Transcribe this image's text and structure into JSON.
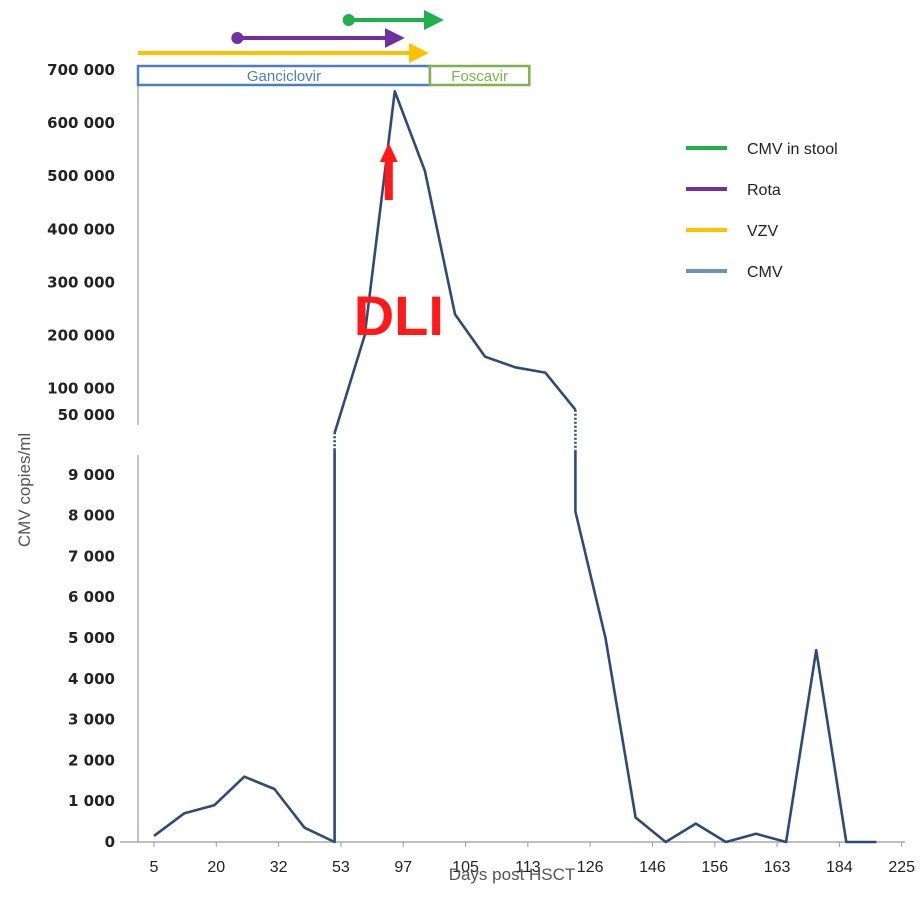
{
  "chart_data": {
    "type": "line",
    "xlabel": "Days post HSCT",
    "ylabel": "CMV copies/ml",
    "x_tick_labels": [
      "5",
      "20",
      "32",
      "53",
      "97",
      "105",
      "113",
      "126",
      "146",
      "156",
      "163",
      "184",
      "225"
    ],
    "y_axis_scale": "broken",
    "y_lower_ticks": [
      {
        "label": "0",
        "value": 0
      },
      {
        "label": "1 000",
        "value": 1000
      },
      {
        "label": "2 000",
        "value": 2000
      },
      {
        "label": "3 000",
        "value": 3000
      },
      {
        "label": "4 000",
        "value": 4000
      },
      {
        "label": "5 000",
        "value": 5000
      },
      {
        "label": "6 000",
        "value": 6000
      },
      {
        "label": "7 000",
        "value": 7000
      },
      {
        "label": "8 000",
        "value": 8000
      },
      {
        "label": "9 000",
        "value": 9000
      }
    ],
    "y_upper_ticks": [
      {
        "label": "50 000",
        "value": 50000
      },
      {
        "label": "100 000",
        "value": 100000
      },
      {
        "label": "200 000",
        "value": 200000
      },
      {
        "label": "300 000",
        "value": 300000
      },
      {
        "label": "400 000",
        "value": 400000
      },
      {
        "label": "500 000",
        "value": 500000
      },
      {
        "label": "600 000",
        "value": 600000
      },
      {
        "label": "700 000",
        "value": 700000
      }
    ],
    "series": [
      {
        "name": "CMV",
        "color": "#2e4a7a",
        "points": [
          {
            "slot": 0,
            "y": 150
          },
          {
            "slot": 1,
            "y": 700
          },
          {
            "slot": 2,
            "y": 900
          },
          {
            "slot": 3,
            "y": 1600
          },
          {
            "slot": 4,
            "y": 1300
          },
          {
            "slot": 5,
            "y": 350
          },
          {
            "slot": 6,
            "y": 0
          },
          {
            "slot": 6,
            "y": 9600
          },
          {
            "slot": 6,
            "y": 10500,
            "dashed_from_prev": true
          },
          {
            "slot": 7,
            "y": 200000
          },
          {
            "slot": 8,
            "y": 660000
          },
          {
            "slot": 9,
            "y": 510000
          },
          {
            "slot": 10,
            "y": 240000
          },
          {
            "slot": 11,
            "y": 160000
          },
          {
            "slot": 12,
            "y": 140000
          },
          {
            "slot": 13,
            "y": 130000
          },
          {
            "slot": 14,
            "y": 60000
          },
          {
            "slot": 14,
            "y": 9600,
            "dashed_from_prev": true
          },
          {
            "slot": 14,
            "y": 8100
          },
          {
            "slot": 15,
            "y": 5000
          },
          {
            "slot": 16,
            "y": 600
          },
          {
            "slot": 17,
            "y": 0
          },
          {
            "slot": 18,
            "y": 450
          },
          {
            "slot": 19,
            "y": 0
          },
          {
            "slot": 20,
            "y": 200
          },
          {
            "slot": 21,
            "y": 0
          },
          {
            "slot": 22,
            "y": 4700
          },
          {
            "slot": 23,
            "y": 0
          },
          {
            "slot": 24,
            "y": 0
          }
        ]
      }
    ],
    "legend": {
      "placement": "top-right",
      "items": [
        {
          "label": "CMV in stool",
          "color": "#1db04b"
        },
        {
          "label": "Rota",
          "color": "#7030a0"
        },
        {
          "label": "VZV",
          "color": "#ffc000"
        },
        {
          "label": "CMV",
          "color": "#6f8fbf"
        }
      ]
    },
    "infection_periods": [
      {
        "name": "CMV in stool",
        "color": "#1db04b",
        "start_slot": 7,
        "end_slot": 9.5,
        "start_marker": "dot"
      },
      {
        "name": "Rota",
        "color": "#7030a0",
        "start_slot": 3.3,
        "end_slot": 8.2,
        "start_marker": "dot"
      },
      {
        "name": "VZV",
        "color": "#ffc000",
        "start_slot": 0,
        "end_slot": 9,
        "start_marker": "none"
      }
    ],
    "treatments": [
      {
        "label": "Ganciclovir",
        "color": "#4a7fc1",
        "start_slot": 0,
        "end_slot": 9.7
      },
      {
        "label": "Foscavir",
        "color": "#7fb24b",
        "start_slot": 9.7,
        "end_slot": 13
      }
    ],
    "annotations": [
      {
        "text": "DLI",
        "color": "#ff1a1a",
        "arrow_slot": 8
      }
    ]
  }
}
